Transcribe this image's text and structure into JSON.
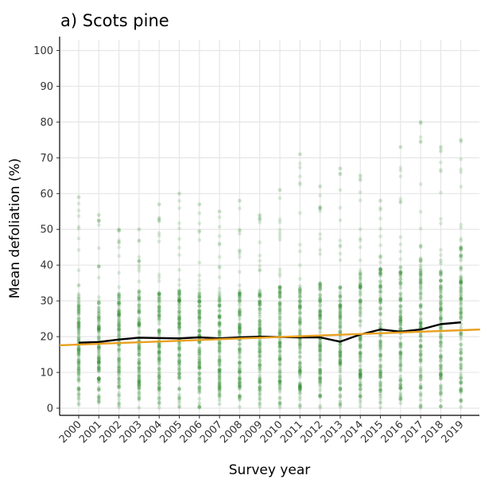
{
  "chart_data": {
    "type": "scatter",
    "title": "a) Scots pine",
    "xlabel": "Survey year",
    "ylabel": "Mean defoliation (%)",
    "categories": [
      "2000",
      "2001",
      "2002",
      "2003",
      "2004",
      "2005",
      "2006",
      "2007",
      "2008",
      "2009",
      "2010",
      "2011",
      "2012",
      "2013",
      "2014",
      "2015",
      "2016",
      "2017",
      "2018",
      "2019"
    ],
    "yticks": [
      0,
      10,
      20,
      30,
      40,
      50,
      60,
      70,
      80,
      90,
      100
    ],
    "ylim": [
      -2,
      103
    ],
    "grid": true,
    "legend": "none",
    "point_color": "#2e8b2e",
    "series": [
      {
        "kind": "points",
        "core_range": [
          [
            5,
            32
          ],
          [
            5,
            30
          ],
          [
            5,
            32
          ],
          [
            5,
            33
          ],
          [
            5,
            33
          ],
          [
            5,
            33
          ],
          [
            5,
            33
          ],
          [
            5,
            33
          ],
          [
            5,
            33
          ],
          [
            5,
            34
          ],
          [
            5,
            35
          ],
          [
            5,
            35
          ],
          [
            5,
            35
          ],
          [
            5,
            34
          ],
          [
            5,
            38
          ],
          [
            5,
            40
          ],
          [
            5,
            40
          ],
          [
            5,
            42
          ],
          [
            5,
            42
          ],
          [
            5,
            45
          ]
        ],
        "max": [
          59,
          54,
          50,
          50,
          57,
          60,
          57,
          55,
          58,
          54,
          61,
          71,
          62,
          67,
          65,
          58,
          73,
          80,
          73,
          75
        ]
      },
      {
        "kind": "line",
        "color": "#000000",
        "values": [
          18.3,
          18.5,
          19.2,
          19.7,
          19.6,
          19.5,
          19.8,
          19.5,
          19.8,
          20.0,
          19.9,
          19.8,
          19.8,
          18.6,
          20.6,
          22.0,
          21.4,
          22.0,
          23.5,
          24.0
        ]
      },
      {
        "kind": "trend",
        "color": "#e8a020",
        "start": 17.6,
        "end": 22.0
      }
    ]
  }
}
